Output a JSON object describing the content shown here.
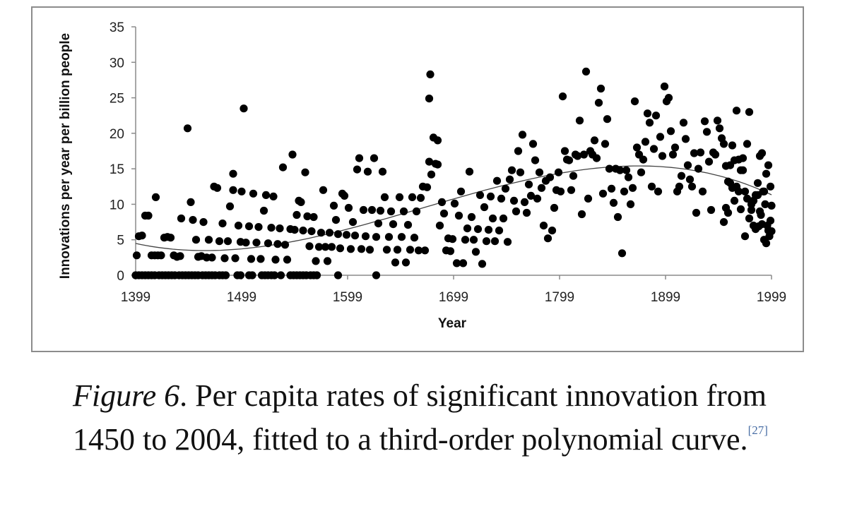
{
  "chart_data": {
    "type": "scatter",
    "xlabel": "Year",
    "ylabel": "Innovations per year per billion people",
    "x_ticks": [
      1399,
      1499,
      1599,
      1699,
      1799,
      1899,
      1999
    ],
    "y_ticks": [
      0,
      5,
      10,
      15,
      20,
      25,
      30,
      35
    ],
    "xlim": [
      1399,
      1999
    ],
    "ylim": [
      0,
      35
    ],
    "grid": false,
    "trendline": {
      "type": "polynomial",
      "order": 3
    },
    "points": [
      [
        1399,
        0
      ],
      [
        1402,
        0
      ],
      [
        1405,
        0
      ],
      [
        1408,
        0
      ],
      [
        1411,
        0
      ],
      [
        1414,
        0
      ],
      [
        1417,
        0
      ],
      [
        1421,
        0
      ],
      [
        1424,
        0
      ],
      [
        1427,
        0
      ],
      [
        1430,
        0
      ],
      [
        1433,
        0
      ],
      [
        1436,
        0
      ],
      [
        1440,
        0
      ],
      [
        1443,
        0
      ],
      [
        1446,
        0
      ],
      [
        1449,
        0
      ],
      [
        1452,
        0
      ],
      [
        1455,
        0
      ],
      [
        1458,
        0
      ],
      [
        1462,
        0
      ],
      [
        1465,
        0
      ],
      [
        1468,
        0
      ],
      [
        1471,
        0
      ],
      [
        1474,
        0
      ],
      [
        1478,
        0
      ],
      [
        1481,
        0
      ],
      [
        1484,
        0
      ],
      [
        1495,
        0
      ],
      [
        1498,
        0
      ],
      [
        1506,
        0
      ],
      [
        1509,
        0
      ],
      [
        1518,
        0
      ],
      [
        1521,
        0
      ],
      [
        1524,
        0
      ],
      [
        1527,
        0
      ],
      [
        1530,
        0
      ],
      [
        1536,
        0
      ],
      [
        1545,
        0
      ],
      [
        1548,
        0
      ],
      [
        1551,
        0
      ],
      [
        1554,
        0
      ],
      [
        1557,
        0
      ],
      [
        1560,
        0
      ],
      [
        1564,
        0
      ],
      [
        1567,
        0
      ],
      [
        1570,
        0
      ],
      [
        1590,
        0
      ],
      [
        1626,
        0
      ],
      [
        1400,
        2.8
      ],
      [
        1402,
        5.5
      ],
      [
        1405,
        5.6
      ],
      [
        1408,
        8.4
      ],
      [
        1411,
        8.4
      ],
      [
        1414,
        2.8
      ],
      [
        1417,
        2.8
      ],
      [
        1420,
        2.8
      ],
      [
        1423,
        2.8
      ],
      [
        1426,
        5.3
      ],
      [
        1429,
        5.4
      ],
      [
        1432,
        5.3
      ],
      [
        1435,
        2.8
      ],
      [
        1438,
        2.6
      ],
      [
        1441,
        2.7
      ],
      [
        1418,
        11
      ],
      [
        1442,
        8
      ],
      [
        1448,
        20.7
      ],
      [
        1451,
        10.3
      ],
      [
        1453,
        7.8
      ],
      [
        1456,
        5
      ],
      [
        1458,
        2.6
      ],
      [
        1461,
        2.7
      ],
      [
        1463,
        7.5
      ],
      [
        1466,
        2.5
      ],
      [
        1468,
        5
      ],
      [
        1471,
        2.5
      ],
      [
        1473,
        12.5
      ],
      [
        1476,
        12.3
      ],
      [
        1478,
        4.8
      ],
      [
        1481,
        7.3
      ],
      [
        1483,
        2.4
      ],
      [
        1486,
        4.8
      ],
      [
        1488,
        9.7
      ],
      [
        1491,
        14.3
      ],
      [
        1491,
        12
      ],
      [
        1493,
        2.4
      ],
      [
        1496,
        7
      ],
      [
        1498,
        4.7
      ],
      [
        1499,
        11.8
      ],
      [
        1501,
        23.5
      ],
      [
        1503,
        4.6
      ],
      [
        1506,
        6.9
      ],
      [
        1508,
        2.3
      ],
      [
        1510,
        11.5
      ],
      [
        1513,
        4.6
      ],
      [
        1515,
        6.8
      ],
      [
        1517,
        2.3
      ],
      [
        1520,
        9.1
      ],
      [
        1522,
        11.3
      ],
      [
        1524,
        4.5
      ],
      [
        1527,
        6.7
      ],
      [
        1529,
        11.1
      ],
      [
        1531,
        2.2
      ],
      [
        1533,
        4.4
      ],
      [
        1535,
        6.6
      ],
      [
        1538,
        15.2
      ],
      [
        1540,
        4.3
      ],
      [
        1542,
        2.2
      ],
      [
        1545,
        6.5
      ],
      [
        1547,
        17
      ],
      [
        1549,
        6.4
      ],
      [
        1551,
        8.5
      ],
      [
        1553,
        10.5
      ],
      [
        1555,
        10.3
      ],
      [
        1557,
        6.3
      ],
      [
        1559,
        14.5
      ],
      [
        1561,
        8.3
      ],
      [
        1563,
        4.1
      ],
      [
        1565,
        6.2
      ],
      [
        1567,
        8.2
      ],
      [
        1569,
        2
      ],
      [
        1572,
        4
      ],
      [
        1574,
        6
      ],
      [
        1576,
        12
      ],
      [
        1578,
        4
      ],
      [
        1580,
        2
      ],
      [
        1582,
        6
      ],
      [
        1584,
        4
      ],
      [
        1586,
        9.8
      ],
      [
        1588,
        7.8
      ],
      [
        1590,
        5.8
      ],
      [
        1592,
        3.8
      ],
      [
        1594,
        11.5
      ],
      [
        1596,
        11.2
      ],
      [
        1598,
        5.7
      ],
      [
        1600,
        9.5
      ],
      [
        1602,
        3.7
      ],
      [
        1604,
        7.5
      ],
      [
        1606,
        5.6
      ],
      [
        1608,
        14.9
      ],
      [
        1610,
        16.5
      ],
      [
        1612,
        3.7
      ],
      [
        1614,
        9.2
      ],
      [
        1616,
        5.5
      ],
      [
        1618,
        14.6
      ],
      [
        1620,
        3.6
      ],
      [
        1622,
        9.2
      ],
      [
        1624,
        16.5
      ],
      [
        1626,
        5.4
      ],
      [
        1628,
        7.3
      ],
      [
        1630,
        9.1
      ],
      [
        1632,
        14.6
      ],
      [
        1634,
        11
      ],
      [
        1636,
        3.6
      ],
      [
        1638,
        5.4
      ],
      [
        1640,
        9
      ],
      [
        1642,
        7.2
      ],
      [
        1644,
        1.8
      ],
      [
        1646,
        3.6
      ],
      [
        1648,
        11
      ],
      [
        1650,
        5.4
      ],
      [
        1652,
        9
      ],
      [
        1654,
        1.8
      ],
      [
        1656,
        7.1
      ],
      [
        1658,
        3.6
      ],
      [
        1660,
        11
      ],
      [
        1662,
        5.3
      ],
      [
        1664,
        9
      ],
      [
        1666,
        3.5
      ],
      [
        1668,
        10.9
      ],
      [
        1670,
        12.5
      ],
      [
        1672,
        3.5
      ],
      [
        1674,
        12.4
      ],
      [
        1676,
        16
      ],
      [
        1676,
        24.9
      ],
      [
        1677,
        28.3
      ],
      [
        1678,
        14.2
      ],
      [
        1680,
        19.4
      ],
      [
        1682,
        15.7
      ],
      [
        1684,
        15.6
      ],
      [
        1684,
        19
      ],
      [
        1686,
        7
      ],
      [
        1688,
        10.3
      ],
      [
        1690,
        8.7
      ],
      [
        1692,
        3.5
      ],
      [
        1694,
        5.2
      ],
      [
        1696,
        3.4
      ],
      [
        1698,
        5.1
      ],
      [
        1700,
        10.1
      ],
      [
        1702,
        1.7
      ],
      [
        1704,
        8.4
      ],
      [
        1706,
        11.8
      ],
      [
        1708,
        1.7
      ],
      [
        1710,
        5
      ],
      [
        1712,
        6.6
      ],
      [
        1714,
        14.6
      ],
      [
        1716,
        8.2
      ],
      [
        1718,
        5
      ],
      [
        1720,
        3.3
      ],
      [
        1722,
        6.5
      ],
      [
        1724,
        11.3
      ],
      [
        1726,
        1.6
      ],
      [
        1728,
        9.6
      ],
      [
        1730,
        4.8
      ],
      [
        1732,
        6.4
      ],
      [
        1734,
        11.1
      ],
      [
        1736,
        8
      ],
      [
        1738,
        4.8
      ],
      [
        1740,
        13.3
      ],
      [
        1742,
        6.3
      ],
      [
        1744,
        10.8
      ],
      [
        1746,
        8
      ],
      [
        1748,
        12.2
      ],
      [
        1750,
        4.7
      ],
      [
        1752,
        13.5
      ],
      [
        1754,
        14.8
      ],
      [
        1756,
        10.5
      ],
      [
        1758,
        9
      ],
      [
        1760,
        17.5
      ],
      [
        1762,
        14.5
      ],
      [
        1764,
        19.8
      ],
      [
        1766,
        10.3
      ],
      [
        1768,
        8.8
      ],
      [
        1770,
        12.8
      ],
      [
        1772,
        11.2
      ],
      [
        1774,
        18.5
      ],
      [
        1776,
        16.2
      ],
      [
        1778,
        10.8
      ],
      [
        1780,
        14.5
      ],
      [
        1782,
        12.3
      ],
      [
        1784,
        7
      ],
      [
        1786,
        13.3
      ],
      [
        1788,
        5.2
      ],
      [
        1790,
        13.8
      ],
      [
        1792,
        6.3
      ],
      [
        1794,
        9.5
      ],
      [
        1796,
        12
      ],
      [
        1798,
        14.5
      ],
      [
        1800,
        11.8
      ],
      [
        1802,
        25.2
      ],
      [
        1804,
        17.5
      ],
      [
        1806,
        16.3
      ],
      [
        1808,
        16.2
      ],
      [
        1810,
        12
      ],
      [
        1812,
        14
      ],
      [
        1814,
        17
      ],
      [
        1816,
        16.8
      ],
      [
        1818,
        21.8
      ],
      [
        1820,
        8.6
      ],
      [
        1822,
        17
      ],
      [
        1824,
        28.7
      ],
      [
        1826,
        10.8
      ],
      [
        1828,
        17.5
      ],
      [
        1830,
        17
      ],
      [
        1832,
        19
      ],
      [
        1834,
        16.5
      ],
      [
        1836,
        24.3
      ],
      [
        1838,
        26.3
      ],
      [
        1840,
        11.5
      ],
      [
        1842,
        18.5
      ],
      [
        1844,
        22
      ],
      [
        1846,
        15
      ],
      [
        1848,
        12.2
      ],
      [
        1850,
        10.2
      ],
      [
        1852,
        15
      ],
      [
        1854,
        8.2
      ],
      [
        1856,
        14.8
      ],
      [
        1858,
        3.1
      ],
      [
        1860,
        11.8
      ],
      [
        1862,
        14.8
      ],
      [
        1864,
        13.8
      ],
      [
        1866,
        10
      ],
      [
        1868,
        12.3
      ],
      [
        1870,
        24.5
      ],
      [
        1872,
        18
      ],
      [
        1874,
        17
      ],
      [
        1876,
        14.5
      ],
      [
        1878,
        16.3
      ],
      [
        1880,
        18.8
      ],
      [
        1882,
        22.8
      ],
      [
        1884,
        21.5
      ],
      [
        1886,
        12.5
      ],
      [
        1888,
        17.8
      ],
      [
        1890,
        22.5
      ],
      [
        1892,
        11.8
      ],
      [
        1894,
        19.5
      ],
      [
        1896,
        16.8
      ],
      [
        1898,
        26.6
      ],
      [
        1900,
        24.5
      ],
      [
        1902,
        25
      ],
      [
        1904,
        20.3
      ],
      [
        1906,
        17
      ],
      [
        1908,
        18
      ],
      [
        1910,
        11.8
      ],
      [
        1912,
        12.5
      ],
      [
        1914,
        14
      ],
      [
        1916,
        21.5
      ],
      [
        1918,
        19.2
      ],
      [
        1920,
        15.5
      ],
      [
        1922,
        13.5
      ],
      [
        1924,
        12.5
      ],
      [
        1926,
        17.2
      ],
      [
        1928,
        8.8
      ],
      [
        1930,
        15
      ],
      [
        1932,
        17.3
      ],
      [
        1934,
        11.8
      ],
      [
        1936,
        21.7
      ],
      [
        1938,
        20.2
      ],
      [
        1940,
        16
      ],
      [
        1942,
        9.2
      ],
      [
        1944,
        17.3
      ],
      [
        1946,
        17
      ],
      [
        1948,
        21.8
      ],
      [
        1950,
        20.7
      ],
      [
        1952,
        19.3
      ],
      [
        1954,
        18.5
      ],
      [
        1956,
        15.4
      ],
      [
        1958,
        13.2
      ],
      [
        1960,
        15.5
      ],
      [
        1962,
        12.3
      ],
      [
        1964,
        10.5
      ],
      [
        1966,
        23.2
      ],
      [
        1968,
        11.8
      ],
      [
        1970,
        9.3
      ],
      [
        1972,
        14.8
      ],
      [
        1974,
        5.5
      ],
      [
        1976,
        18.5
      ],
      [
        1978,
        23
      ],
      [
        1980,
        10
      ],
      [
        1982,
        7
      ],
      [
        1984,
        11.3
      ],
      [
        1986,
        13
      ],
      [
        1988,
        16.8
      ],
      [
        1990,
        17.2
      ],
      [
        1992,
        11.8
      ],
      [
        1994,
        14.3
      ],
      [
        1996,
        15.5
      ],
      [
        1998,
        12.5
      ],
      [
        1999,
        9.8
      ],
      [
        1954,
        7.5
      ],
      [
        1956,
        9.5
      ],
      [
        1958,
        8.8
      ],
      [
        1960,
        13
      ],
      [
        1962,
        18.3
      ],
      [
        1964,
        16.2
      ],
      [
        1966,
        12.5
      ],
      [
        1968,
        16.3
      ],
      [
        1970,
        14.8
      ],
      [
        1972,
        16.5
      ],
      [
        1974,
        11.8
      ],
      [
        1976,
        10.8
      ],
      [
        1978,
        8
      ],
      [
        1980,
        9.2
      ],
      [
        1982,
        10.5
      ],
      [
        1984,
        6.5
      ],
      [
        1986,
        11.3
      ],
      [
        1988,
        9
      ],
      [
        1990,
        7.2
      ],
      [
        1992,
        5
      ],
      [
        1994,
        4.5
      ],
      [
        1996,
        6.3
      ],
      [
        1998,
        7.7
      ],
      [
        1999,
        6.2
      ],
      [
        1997,
        5.5
      ],
      [
        1995,
        7
      ],
      [
        1993,
        10
      ],
      [
        1991,
        11.8
      ],
      [
        1989,
        8.5
      ],
      [
        1987,
        6.9
      ]
    ]
  },
  "caption": {
    "prefix": "Figure 6",
    "text": ". Per capita rates of significant innovation from 1450 to 2004, fitted to a third-order polynomial curve.",
    "ref": "[27]"
  }
}
